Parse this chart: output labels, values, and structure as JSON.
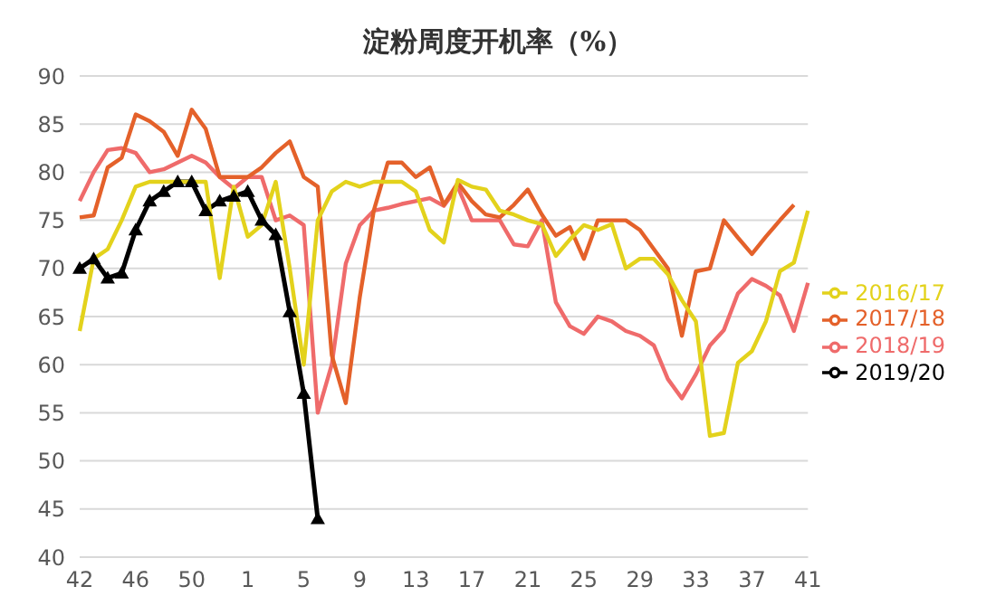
{
  "chart_data": {
    "type": "line",
    "title": "淀粉周度开机率（%）",
    "categories": [
      "42",
      null,
      null,
      null,
      "46",
      null,
      null,
      null,
      "50",
      null,
      null,
      null,
      "1",
      null,
      null,
      null,
      "5",
      null,
      null,
      null,
      "9",
      null,
      null,
      null,
      "13",
      null,
      null,
      null,
      "17",
      null,
      null,
      null,
      "21",
      null,
      null,
      null,
      "25",
      null,
      null,
      null,
      "29",
      null,
      null,
      null,
      "33",
      null,
      null,
      null,
      "37",
      null,
      null,
      null,
      "41"
    ],
    "series": [
      {
        "name": "2019/20",
        "color": "#000000",
        "marker": "triangle",
        "values": [
          70,
          71,
          69,
          69.5,
          74,
          77,
          78,
          79,
          79,
          76,
          77,
          77.5,
          78,
          75,
          73.5,
          65.5,
          57,
          44,
          null,
          null,
          null,
          null,
          null,
          null,
          null,
          null,
          null,
          null,
          null,
          null,
          null,
          null,
          null,
          null,
          null,
          null,
          null,
          null,
          null,
          null,
          null,
          null,
          null,
          null,
          null,
          null,
          null,
          null,
          null,
          null,
          null,
          null,
          null
        ]
      },
      {
        "name": "2018/19",
        "color": "#ef6b6b",
        "marker": "none",
        "values": [
          77,
          80,
          82.3,
          82.5,
          82,
          80,
          80.3,
          81,
          81.7,
          81,
          79.5,
          78.3,
          79.5,
          79.5,
          75,
          75.5,
          74.5,
          55,
          60,
          70.5,
          74.5,
          76,
          76.3,
          76.7,
          77,
          77.3,
          76.5,
          78.5,
          75,
          75,
          75,
          72.5,
          72.3,
          75,
          66.5,
          64,
          63.2,
          65,
          64.5,
          63.5,
          63,
          62,
          58.5,
          56.5,
          59,
          62,
          63.6,
          67.4,
          68.9,
          68.2,
          67.2,
          63.5,
          68.5
        ]
      },
      {
        "name": "2017/18",
        "color": "#e4612a",
        "marker": "none",
        "values": [
          75.3,
          75.5,
          80.5,
          81.5,
          86,
          85.3,
          84.2,
          81.7,
          86.5,
          84.5,
          79.5,
          79.5,
          79.5,
          80.5,
          82,
          83.2,
          79.5,
          78.5,
          61,
          56,
          67,
          76,
          81,
          81,
          79.5,
          80.5,
          76.6,
          78.9,
          77,
          75.6,
          75.3,
          76.6,
          78.2,
          75.6,
          73.4,
          74.3,
          71,
          75,
          75,
          75,
          74,
          72,
          70,
          63,
          69.7,
          70,
          75,
          73.2,
          71.5,
          73.3,
          75,
          76.6,
          null
        ]
      },
      {
        "name": "2016/17",
        "color": "#e3d21c",
        "marker": "none",
        "values": [
          63.5,
          71,
          72,
          75,
          78.5,
          79,
          79,
          79,
          79,
          79,
          69,
          78.5,
          73.3,
          74.5,
          79,
          70,
          60,
          75,
          78,
          79,
          78.5,
          79,
          79,
          79,
          78,
          74,
          72.7,
          79.2,
          78.5,
          78.2,
          76,
          75.6,
          75,
          74.6,
          71.3,
          73,
          74.5,
          74,
          74.6,
          70,
          71,
          71,
          69.4,
          66.7,
          64.5,
          52.6,
          52.9,
          60.2,
          61.4,
          64.5,
          69.7,
          70.6,
          76
        ]
      }
    ],
    "ylim": [
      40,
      90
    ],
    "yticks": [
      40,
      45,
      50,
      55,
      60,
      65,
      70,
      75,
      80,
      85,
      90
    ],
    "grid": "y",
    "legend": "right",
    "line_style": "solid"
  }
}
